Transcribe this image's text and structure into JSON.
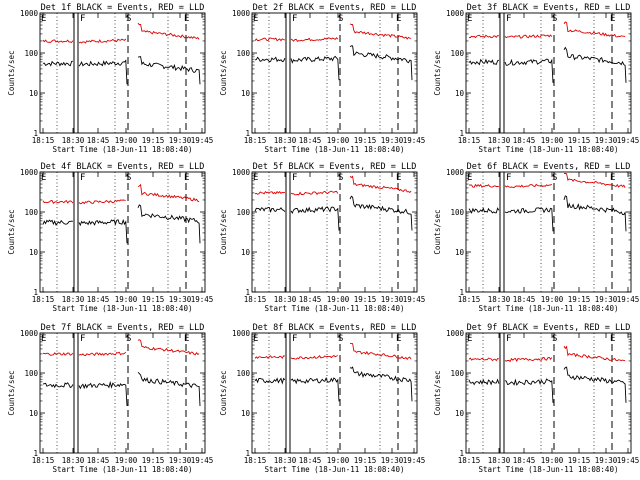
{
  "chart_data": [
    {
      "type": "line",
      "panel": "det-1f",
      "title": "Det 1f BLACK = Events, RED = LLD",
      "xlabel": "Start Time (18-Jun-11 18:08:40)",
      "ylabel": "Counts/sec",
      "yscale": "log",
      "ylim": [
        1,
        1000
      ],
      "yticks": [
        "1",
        "10",
        "100",
        "1000"
      ],
      "xticks": [
        "18:15",
        "18:30",
        "18:45",
        "19:00",
        "19:15",
        "19:30",
        "19:45"
      ],
      "x_minutes_range": [
        0,
        99
      ],
      "events_level": [
        55,
        55
      ],
      "lld_level": [
        200,
        350
      ],
      "markers": [
        {
          "label": "F",
          "x_min": 21
        },
        {
          "label": "S",
          "x_min": 52
        },
        {
          "label": "E",
          "x_min": 91
        }
      ],
      "series": [
        {
          "name": "Events",
          "color": "#000000"
        },
        {
          "name": "LLD",
          "color": "#dd0000"
        }
      ]
    },
    {
      "type": "line",
      "panel": "det-2f",
      "title": "Det 2f BLACK = Events, RED = LLD",
      "xlabel": "Start Time (18-Jun-11 18:08:40)",
      "ylabel": "Counts/sec",
      "yscale": "log",
      "ylim": [
        1,
        1000
      ],
      "yticks": [
        "1",
        "10",
        "100",
        "1000"
      ],
      "xticks": [
        "18:15",
        "18:30",
        "18:45",
        "19:00",
        "19:15",
        "19:30",
        "19:45"
      ],
      "x_minutes_range": [
        0,
        99
      ],
      "events_level": [
        70,
        100
      ],
      "lld_level": [
        220,
        350
      ],
      "markers": [
        {
          "label": "F",
          "x_min": 21
        },
        {
          "label": "S",
          "x_min": 52
        },
        {
          "label": "E",
          "x_min": 91
        }
      ],
      "series": [
        {
          "name": "Events",
          "color": "#000000"
        },
        {
          "name": "LLD",
          "color": "#dd0000"
        }
      ]
    },
    {
      "type": "line",
      "panel": "det-3f",
      "title": "Det 3f BLACK = Events, RED = LLD",
      "xlabel": "Start Time (18-Jun-11 18:08:40)",
      "ylabel": "Counts/sec",
      "yscale": "log",
      "ylim": [
        1,
        1000
      ],
      "yticks": [
        "1",
        "10",
        "100",
        "1000"
      ],
      "xticks": [
        "18:15",
        "18:30",
        "18:45",
        "19:00",
        "19:15",
        "19:30",
        "19:45"
      ],
      "x_minutes_range": [
        0,
        99
      ],
      "events_level": [
        60,
        85
      ],
      "lld_level": [
        260,
        380
      ],
      "markers": [
        {
          "label": "F",
          "x_min": 21
        },
        {
          "label": "S",
          "x_min": 52
        },
        {
          "label": "E",
          "x_min": 91
        }
      ],
      "series": [
        {
          "name": "Events",
          "color": "#000000"
        },
        {
          "name": "LLD",
          "color": "#dd0000"
        }
      ]
    },
    {
      "type": "line",
      "panel": "det-4f",
      "title": "Det 4f BLACK = Events, RED = LLD",
      "xlabel": "Start Time (18-Jun-11 18:08:40)",
      "ylabel": "Counts/sec",
      "yscale": "log",
      "ylim": [
        1,
        1000
      ],
      "yticks": [
        "1",
        "10",
        "100",
        "1000"
      ],
      "xticks": [
        "18:15",
        "18:30",
        "18:45",
        "19:00",
        "19:15",
        "19:30",
        "19:45"
      ],
      "x_minutes_range": [
        0,
        99
      ],
      "events_level": [
        55,
        90
      ],
      "lld_level": [
        180,
        300
      ],
      "markers": [
        {
          "label": "F",
          "x_min": 21
        },
        {
          "label": "S",
          "x_min": 52
        },
        {
          "label": "E",
          "x_min": 91
        }
      ],
      "series": [
        {
          "name": "Events",
          "color": "#000000"
        },
        {
          "name": "LLD",
          "color": "#dd0000"
        }
      ]
    },
    {
      "type": "line",
      "panel": "det-5f",
      "title": "Det 5f BLACK = Events, RED = LLD",
      "xlabel": "Start Time (18-Jun-11 18:08:40)",
      "ylabel": "Counts/sec",
      "yscale": "log",
      "ylim": [
        1,
        1000
      ],
      "yticks": [
        "1",
        "10",
        "100",
        "1000"
      ],
      "xticks": [
        "18:15",
        "18:30",
        "18:45",
        "19:00",
        "19:15",
        "19:30",
        "19:45"
      ],
      "x_minutes_range": [
        0,
        99
      ],
      "events_level": [
        115,
        150
      ],
      "lld_level": [
        300,
        500
      ],
      "markers": [
        {
          "label": "F",
          "x_min": 21
        },
        {
          "label": "S",
          "x_min": 52
        },
        {
          "label": "E",
          "x_min": 91
        }
      ],
      "series": [
        {
          "name": "Events",
          "color": "#000000"
        },
        {
          "name": "LLD",
          "color": "#dd0000"
        }
      ]
    },
    {
      "type": "line",
      "panel": "det-6f",
      "title": "Det 6f BLACK = Events, RED = LLD",
      "xlabel": "Start Time (18-Jun-11 18:08:40)",
      "ylabel": "Counts/sec",
      "yscale": "log",
      "ylim": [
        1,
        1000
      ],
      "yticks": [
        "1",
        "10",
        "100",
        "1000"
      ],
      "xticks": [
        "18:15",
        "18:30",
        "18:45",
        "19:00",
        "19:15",
        "19:30",
        "19:45"
      ],
      "x_minutes_range": [
        0,
        99
      ],
      "events_level": [
        110,
        150
      ],
      "lld_level": [
        450,
        650
      ],
      "markers": [
        {
          "label": "F",
          "x_min": 21
        },
        {
          "label": "S",
          "x_min": 52
        },
        {
          "label": "E",
          "x_min": 91
        }
      ],
      "series": [
        {
          "name": "Events",
          "color": "#000000"
        },
        {
          "name": "LLD",
          "color": "#dd0000"
        }
      ]
    },
    {
      "type": "line",
      "panel": "det-7f",
      "title": "Det 7f BLACK = Events, RED = LLD",
      "xlabel": "Start Time (18-Jun-11 18:08:40)",
      "ylabel": "Counts/sec",
      "yscale": "log",
      "ylim": [
        1,
        1000
      ],
      "yticks": [
        "1",
        "10",
        "100",
        "1000"
      ],
      "xticks": [
        "18:15",
        "18:30",
        "18:45",
        "19:00",
        "19:15",
        "19:30",
        "19:45"
      ],
      "x_minutes_range": [
        0,
        99
      ],
      "events_level": [
        50,
        70
      ],
      "lld_level": [
        300,
        450
      ],
      "markers": [
        {
          "label": "F",
          "x_min": 21
        },
        {
          "label": "S",
          "x_min": 52
        },
        {
          "label": "E",
          "x_min": 91
        }
      ],
      "series": [
        {
          "name": "Events",
          "color": "#000000"
        },
        {
          "name": "LLD",
          "color": "#dd0000"
        }
      ]
    },
    {
      "type": "line",
      "panel": "det-8f",
      "title": "Det 8f BLACK = Events, RED = LLD",
      "xlabel": "Start Time (18-Jun-11 18:08:40)",
      "ylabel": "Counts/sec",
      "yscale": "log",
      "ylim": [
        1,
        1000
      ],
      "yticks": [
        "1",
        "10",
        "100",
        "1000"
      ],
      "xticks": [
        "18:15",
        "18:30",
        "18:45",
        "19:00",
        "19:15",
        "19:30",
        "19:45"
      ],
      "x_minutes_range": [
        0,
        99
      ],
      "events_level": [
        65,
        100
      ],
      "lld_level": [
        250,
        350
      ],
      "markers": [
        {
          "label": "F",
          "x_min": 21
        },
        {
          "label": "S",
          "x_min": 52
        },
        {
          "label": "E",
          "x_min": 91
        }
      ],
      "series": [
        {
          "name": "Events",
          "color": "#000000"
        },
        {
          "name": "LLD",
          "color": "#dd0000"
        }
      ]
    },
    {
      "type": "line",
      "panel": "det-9f",
      "title": "Det 9f BLACK = Events, RED = LLD",
      "xlabel": "Start Time (18-Jun-11 18:08:40)",
      "ylabel": "Counts/sec",
      "yscale": "log",
      "ylim": [
        1,
        1000
      ],
      "yticks": [
        "1",
        "10",
        "100",
        "1000"
      ],
      "xticks": [
        "18:15",
        "18:30",
        "18:45",
        "19:00",
        "19:15",
        "19:30",
        "19:45"
      ],
      "x_minutes_range": [
        0,
        99
      ],
      "events_level": [
        60,
        85
      ],
      "lld_level": [
        220,
        300
      ],
      "markers": [
        {
          "label": "F",
          "x_min": 21
        },
        {
          "label": "S",
          "x_min": 52
        },
        {
          "label": "E",
          "x_min": 91
        }
      ],
      "series": [
        {
          "name": "Events",
          "color": "#000000"
        },
        {
          "name": "LLD",
          "color": "#dd0000"
        }
      ]
    }
  ]
}
